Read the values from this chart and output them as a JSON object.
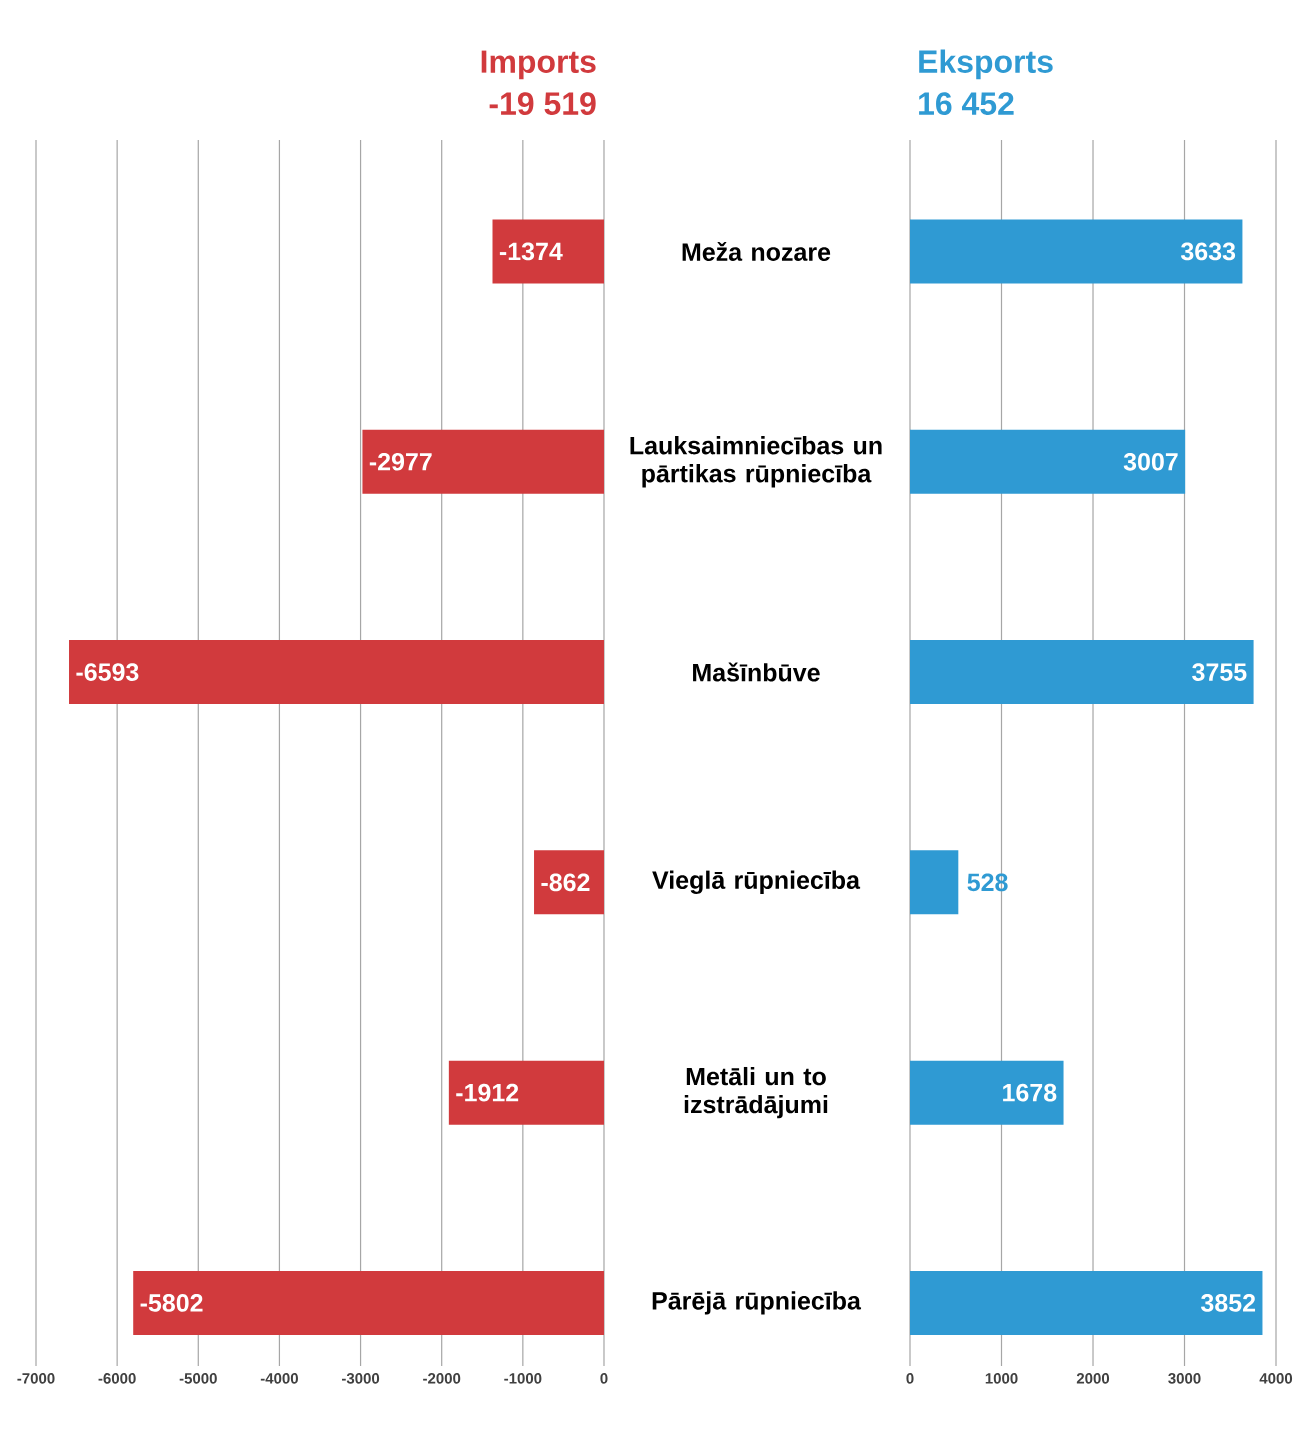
{
  "chart_data": [
    {
      "type": "bar",
      "orientation": "horizontal",
      "title": "Imports",
      "subtitle": "-19 519",
      "categories": [
        "Meža nozare",
        "Lauksaimniecības un pārtikas rūpniecība",
        "Mašīnbūve",
        "Vieglā rūpniecība",
        "Metāli un to izstrādājumi",
        "Pārējā rūpniecība"
      ],
      "series": [
        {
          "color": "#d13a3d",
          "values": [
            -1374,
            -2977,
            -6593,
            -862,
            -1912,
            -5802
          ]
        }
      ],
      "xlim": [
        -7000,
        0
      ],
      "xticks": [
        -7000,
        -6000,
        -5000,
        -4000,
        -3000,
        -2000,
        -1000,
        0
      ],
      "grid": "x",
      "data_labels": true
    },
    {
      "type": "bar",
      "orientation": "horizontal",
      "title": "Eksports",
      "subtitle": "16 452",
      "categories": [
        null,
        null,
        null,
        null,
        null,
        null
      ],
      "series": [
        {
          "color": "#2f9ad3",
          "values": [
            3633,
            3007,
            3755,
            528,
            1678,
            3852
          ]
        }
      ],
      "xlim": [
        0,
        4000
      ],
      "xticks": [
        0,
        1000,
        2000,
        3000,
        4000
      ],
      "grid": "x",
      "data_labels": true,
      "tick_labels": "x"
    }
  ]
}
